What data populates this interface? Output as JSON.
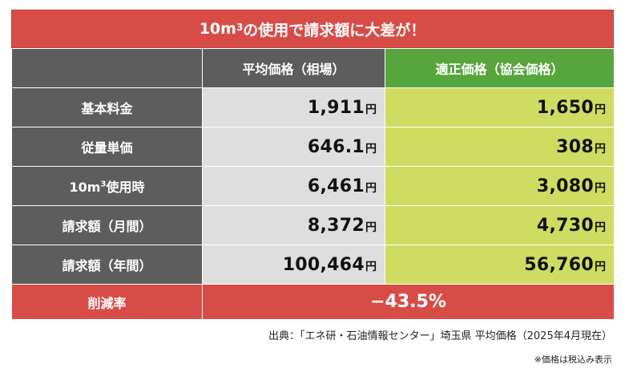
{
  "title": {
    "prefix": "10m",
    "sup": "3",
    "suffix": "の使用で請求額に大差が！"
  },
  "headers": {
    "average": "平均価格（相場）",
    "fair": "適正価格（協会価格）"
  },
  "unit": "円",
  "rows": [
    {
      "label": "基本料金",
      "label_sup": "",
      "label_suffix": "",
      "average": "1,911",
      "fair": "1,650"
    },
    {
      "label": "従量単価",
      "label_sup": "",
      "label_suffix": "",
      "average": "646.1",
      "fair": "308"
    },
    {
      "label": "10m",
      "label_sup": "3",
      "label_suffix": "使用時",
      "average": "6,461",
      "fair": "3,080"
    },
    {
      "label": "請求額（月間）",
      "label_sup": "",
      "label_suffix": "",
      "average": "8,372",
      "fair": "4,730"
    },
    {
      "label": "請求額（年間）",
      "label_sup": "",
      "label_suffix": "",
      "average": "100,464",
      "fair": "56,760"
    }
  ],
  "reduction": {
    "label": "削減率",
    "value": "−43.5%"
  },
  "source": "出典：「エネ研・石油情報センター」埼玉県 平均価格（2025年4月現在）",
  "note": "※価格は税込み表示",
  "colors": {
    "red": "#d84c48",
    "gray_dark": "#5d5d5d",
    "gray_light": "#dedede",
    "green": "#56a53d",
    "lime": "#cfdc62"
  }
}
